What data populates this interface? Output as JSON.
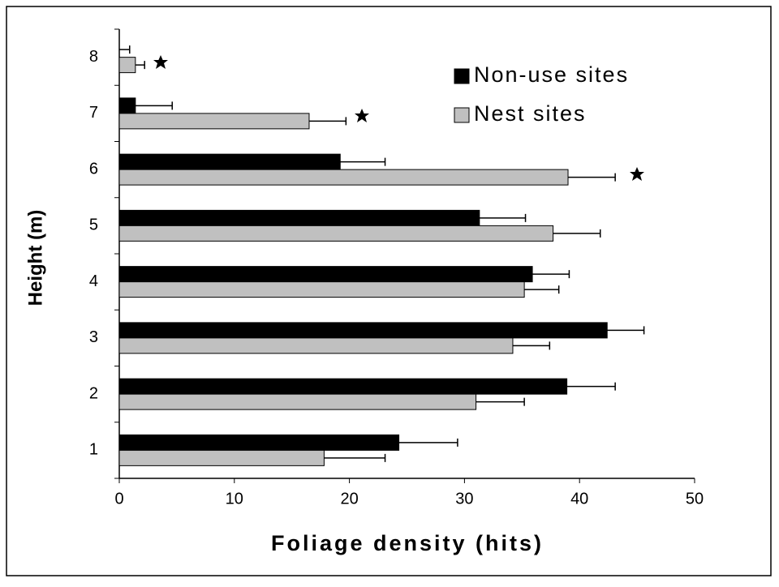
{
  "chart_data": {
    "type": "bar",
    "orientation": "horizontal",
    "x_label": "Foliage density (hits)",
    "y_label": "Height (m)",
    "categories": [
      "1",
      "2",
      "3",
      "4",
      "5",
      "6",
      "7",
      "8"
    ],
    "series": [
      {
        "name": "Non-use sites",
        "color": "#000000",
        "values": [
          24.3,
          38.9,
          42.4,
          35.9,
          31.3,
          19.2,
          1.4,
          0
        ],
        "errors": [
          5.1,
          4.2,
          3.2,
          3.2,
          4.0,
          3.9,
          3.2,
          0.9
        ]
      },
      {
        "name": "Nest sites",
        "color": "#c0c0c0",
        "values": [
          17.8,
          31.0,
          34.2,
          35.2,
          37.7,
          39.0,
          16.5,
          1.4
        ],
        "errors": [
          5.3,
          4.2,
          3.2,
          3.0,
          4.1,
          4.1,
          3.2,
          0.8
        ]
      }
    ],
    "xlim": [
      0,
      50
    ],
    "xticks": [
      0,
      10,
      20,
      30,
      40,
      50
    ],
    "legend": "top-right"
  }
}
